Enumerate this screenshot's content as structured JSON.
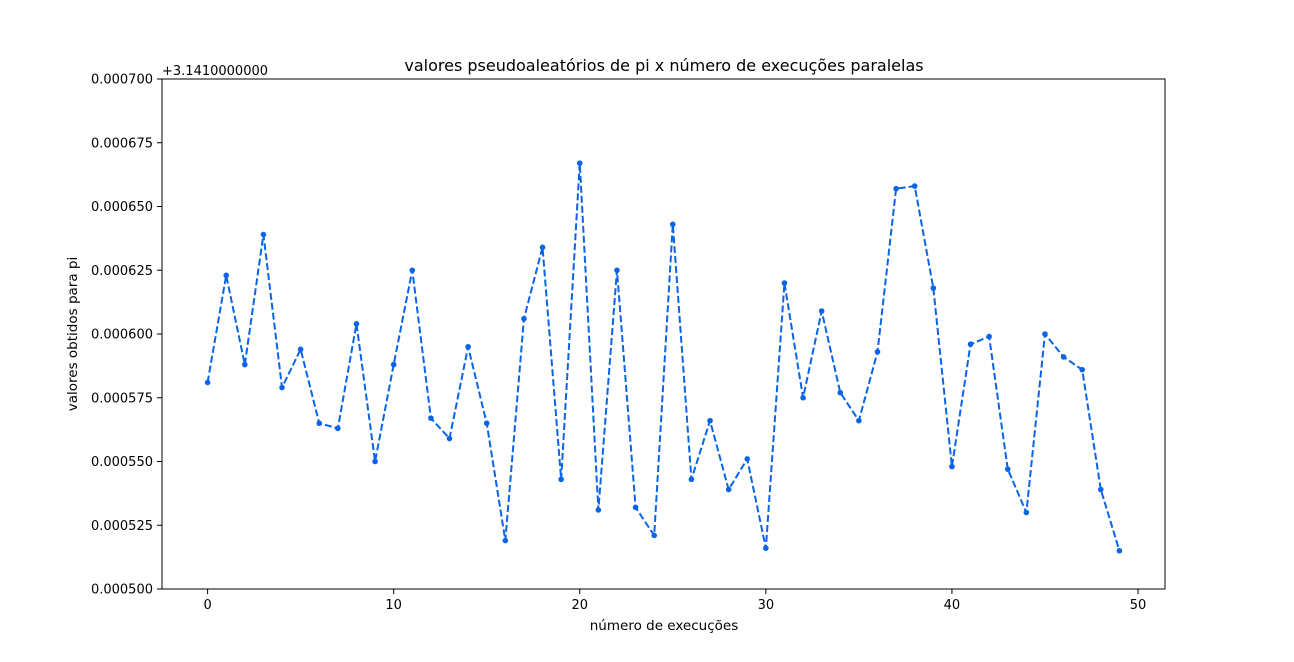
{
  "chart_data": {
    "type": "line",
    "title": "valores pseudoaleatórios de pi x número de execuções paralelas",
    "xlabel": "número de execuções",
    "ylabel": "valores obtidos para pi",
    "y_offset_label": "+3.1410000000",
    "xlim": [
      -2.45,
      51.45
    ],
    "ylim": [
      0.0005,
      0.0007
    ],
    "x_ticks": [
      0,
      10,
      20,
      30,
      40,
      50
    ],
    "x_tick_labels": [
      "0",
      "10",
      "20",
      "30",
      "40",
      "50"
    ],
    "y_ticks": [
      0.0005,
      0.000525,
      0.00055,
      0.000575,
      0.0006,
      0.000625,
      0.00065,
      0.000675,
      0.0007
    ],
    "y_tick_labels": [
      "0.000500",
      "0.000525",
      "0.000550",
      "0.000575",
      "0.000600",
      "0.000625",
      "0.000650",
      "0.000675",
      "0.000700"
    ],
    "grid": false,
    "series": [
      {
        "color": "#0a64e8",
        "line_style": "dashed",
        "marker": "circle",
        "x": [
          0,
          1,
          2,
          3,
          4,
          5,
          6,
          7,
          8,
          9,
          10,
          11,
          12,
          13,
          14,
          15,
          16,
          17,
          18,
          19,
          20,
          21,
          22,
          23,
          24,
          25,
          26,
          27,
          28,
          29,
          30,
          31,
          32,
          33,
          34,
          35,
          36,
          37,
          38,
          39,
          40,
          41,
          42,
          43,
          44,
          45,
          46,
          47,
          48,
          49
        ],
        "values": [
          0.000581,
          0.000623,
          0.000588,
          0.000639,
          0.000579,
          0.000594,
          0.000565,
          0.000563,
          0.000604,
          0.00055,
          0.000588,
          0.000625,
          0.000567,
          0.000559,
          0.000595,
          0.000565,
          0.000519,
          0.000606,
          0.000634,
          0.000543,
          0.000667,
          0.000531,
          0.000625,
          0.000532,
          0.000521,
          0.000643,
          0.000543,
          0.000566,
          0.000539,
          0.000551,
          0.000516,
          0.00062,
          0.000575,
          0.000609,
          0.000577,
          0.000566,
          0.000593,
          0.000657,
          0.000658,
          0.000618,
          0.000548,
          0.000596,
          0.000599,
          0.000547,
          0.00053,
          0.0006,
          0.000591,
          0.000586,
          0.000539,
          0.000515
        ]
      }
    ]
  }
}
